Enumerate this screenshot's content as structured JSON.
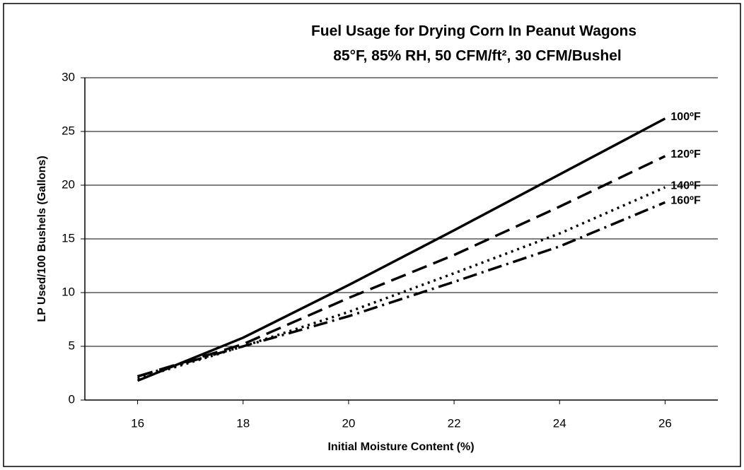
{
  "chart_data": {
    "type": "line",
    "title": "Fuel Usage for Drying Corn In Peanut Wagons",
    "subtitle": "85°F, 85% RH, 50 CFM/ft², 30 CFM/Bushel",
    "x_label": "Initial Moisture Content (%)",
    "y_label": "LP Used/100 Bushels (Gallons)",
    "x": [
      16,
      18,
      20,
      22,
      24,
      26
    ],
    "series": [
      {
        "name": "100ºF",
        "color": "#000000",
        "dash": "solid",
        "values": [
          1.8,
          5.8,
          10.7,
          15.8,
          21.0,
          26.2
        ]
      },
      {
        "name": "120ºF",
        "color": "#000000",
        "dash": "long-dash",
        "values": [
          2.2,
          5.2,
          9.5,
          13.5,
          18.0,
          22.7
        ]
      },
      {
        "name": "140ºF",
        "color": "#000000",
        "dash": "dotted",
        "values": [
          2.0,
          5.0,
          8.2,
          11.8,
          15.5,
          19.8
        ]
      },
      {
        "name": "160ºF",
        "color": "#000000",
        "dash": "dash-dot",
        "values": [
          2.2,
          5.0,
          7.8,
          11.0,
          14.3,
          18.4
        ]
      }
    ],
    "xlim": [
      15,
      27
    ],
    "xticks": [
      16,
      18,
      20,
      22,
      24,
      26
    ],
    "ylim": [
      0,
      30
    ],
    "yticks": [
      0,
      5,
      10,
      15,
      20,
      25,
      30
    ],
    "grid": true
  }
}
